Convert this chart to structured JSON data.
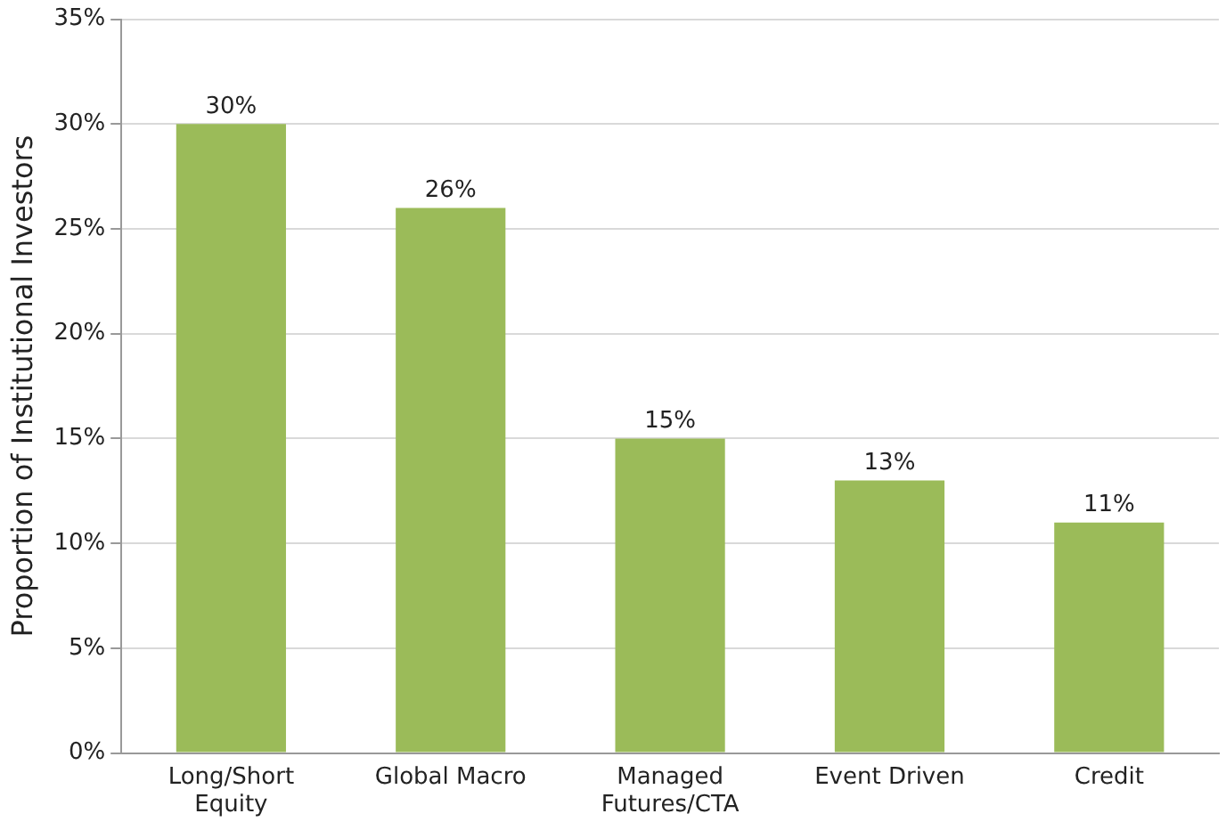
{
  "chart_data": {
    "type": "bar",
    "ylabel": "Proportion of Institutional Investors",
    "categories": [
      "Long/Short Equity",
      "Global Macro",
      "Managed Futures/CTA",
      "Event Driven",
      "Credit"
    ],
    "values": [
      30,
      26,
      15,
      13,
      11
    ],
    "value_labels": [
      "30%",
      "26%",
      "15%",
      "13%",
      "11%"
    ],
    "color": "#9bbb59",
    "ylim": [
      0,
      35
    ],
    "yticks": [
      {
        "value": 0,
        "label": "0%"
      },
      {
        "value": 5,
        "label": "5%"
      },
      {
        "value": 10,
        "label": "10%"
      },
      {
        "value": 15,
        "label": "15%"
      },
      {
        "value": 20,
        "label": "20%"
      },
      {
        "value": 25,
        "label": "25%"
      },
      {
        "value": 30,
        "label": "30%"
      },
      {
        "value": 35,
        "label": "35%"
      }
    ],
    "grid": "y"
  }
}
